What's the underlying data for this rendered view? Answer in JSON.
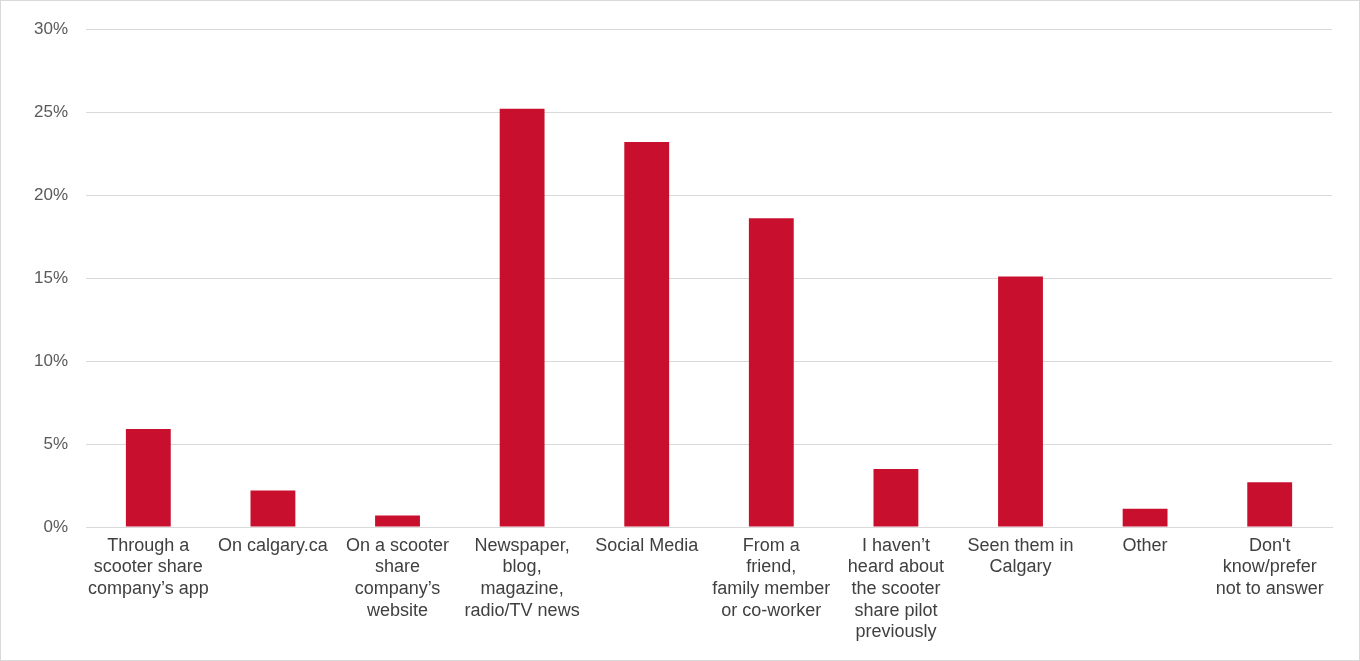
{
  "chart_data": {
    "type": "bar",
    "categories": [
      "Through a scooter share company’s app",
      "On calgary.ca",
      "On a scooter share company’s website",
      "Newspaper, blog, magazine, radio/TV news",
      "Social Media",
      "From a friend, family member or co-worker",
      "I haven’t heard about the scooter share pilot previously",
      "Seen them in Calgary",
      "Other",
      "Don't know/prefer not to answer"
    ],
    "values": [
      5.9,
      2.2,
      0.7,
      25.2,
      23.2,
      18.6,
      3.5,
      15.1,
      1.1,
      2.7
    ],
    "color": "#c8102e",
    "ylim": [
      0,
      30
    ],
    "yticks": [
      {
        "value": 0,
        "label": "0%"
      },
      {
        "value": 5,
        "label": "5%"
      },
      {
        "value": 10,
        "label": "10%"
      },
      {
        "value": 15,
        "label": "15%"
      },
      {
        "value": 20,
        "label": "20%"
      },
      {
        "value": 25,
        "label": "25%"
      },
      {
        "value": 30,
        "label": "30%"
      }
    ],
    "grid": "y"
  }
}
